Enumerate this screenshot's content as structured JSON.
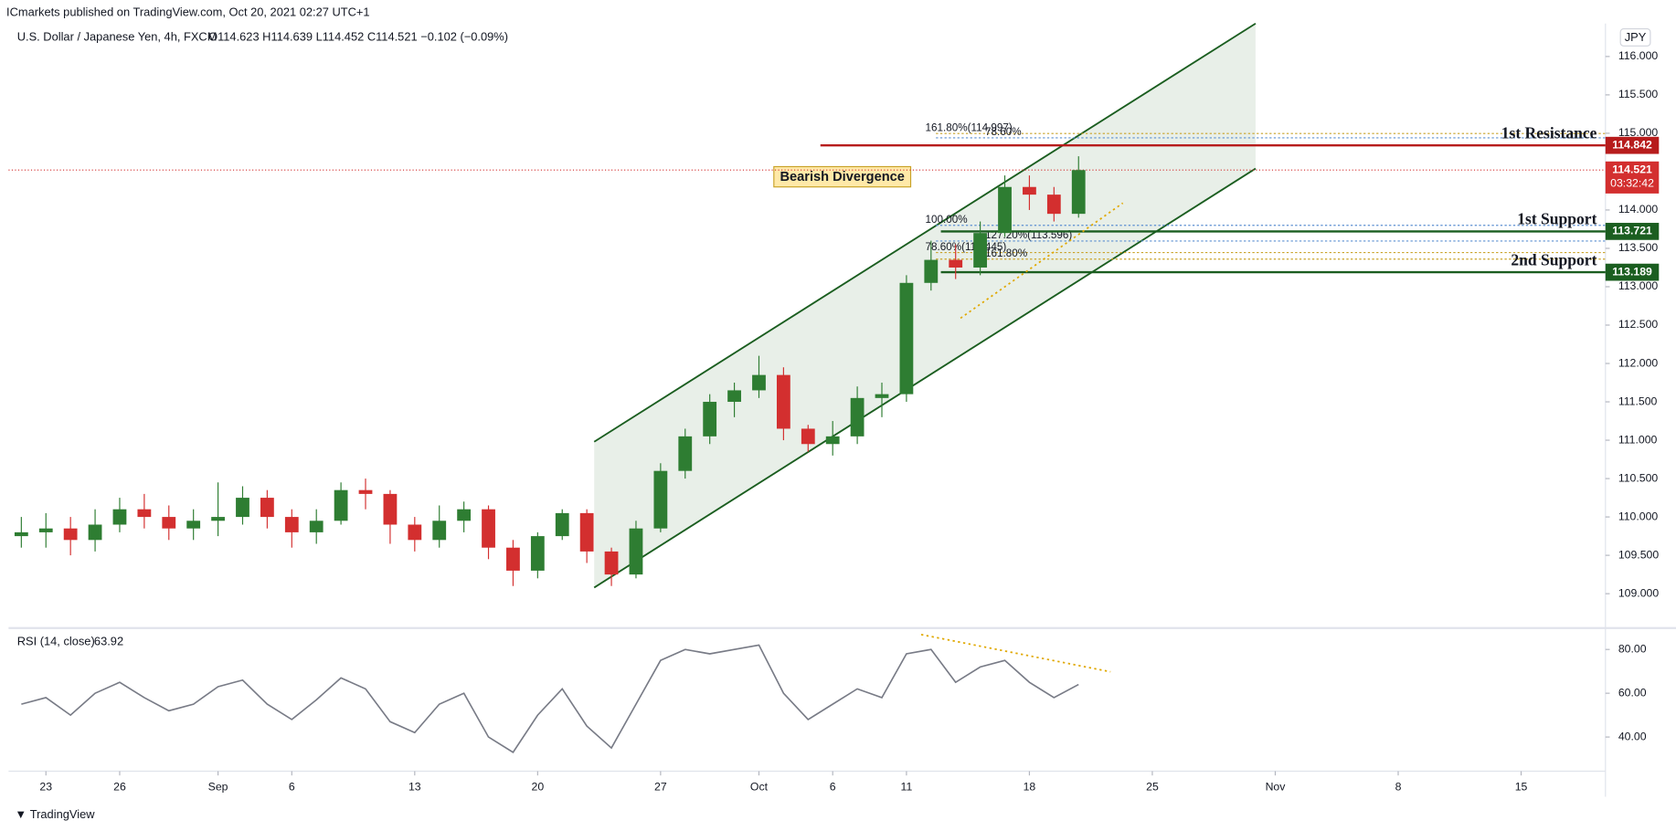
{
  "header": "ICmarkets published on TradingView.com, Oct 20, 2021 02:27 UTC+1",
  "footer": "TradingView",
  "chart_data": {
    "type": "candlestick",
    "symbol": "U.S. Dollar / Japanese Yen, 4h, FXCM",
    "ohlc_text": "O114.623 H114.639 L114.452 C114.521 −0.102 (−0.09%)",
    "currency": "JPY",
    "annotation": "Bearish Divergence",
    "up_color": "#2e7d32",
    "down_color": "#d32f2f",
    "xlim": [
      -1.52,
      63.43
    ],
    "xticks": [
      {
        "value": 0,
        "label": "23"
      },
      {
        "value": 3,
        "label": "26"
      },
      {
        "value": 7,
        "label": "Sep"
      },
      {
        "value": 10,
        "label": "6"
      },
      {
        "value": 15,
        "label": "13"
      },
      {
        "value": 20,
        "label": "20"
      },
      {
        "value": 25,
        "label": "27"
      },
      {
        "value": 29,
        "label": "Oct"
      },
      {
        "value": 32,
        "label": "6"
      },
      {
        "value": 35,
        "label": "11"
      },
      {
        "value": 40,
        "label": "18"
      },
      {
        "value": 45,
        "label": "25"
      },
      {
        "value": 50,
        "label": "Nov"
      },
      {
        "value": 55,
        "label": "8"
      },
      {
        "value": 60,
        "label": "15"
      }
    ],
    "ylim": [
      108.58,
      116.43
    ],
    "yticks": [
      {
        "value": 109,
        "label": "109.000"
      },
      {
        "value": 109.5,
        "label": "109.500"
      },
      {
        "value": 110,
        "label": "110.000"
      },
      {
        "value": 110.5,
        "label": "110.500"
      },
      {
        "value": 111,
        "label": "111.000"
      },
      {
        "value": 111.5,
        "label": "111.500"
      },
      {
        "value": 112,
        "label": "112.000"
      },
      {
        "value": 112.5,
        "label": "112.500"
      },
      {
        "value": 113,
        "label": "113.000"
      },
      {
        "value": 113.5,
        "label": "113.500"
      },
      {
        "value": 114,
        "label": "114.000"
      },
      {
        "value": 114.5,
        "label": "114.500"
      },
      {
        "value": 115,
        "label": "115.000"
      },
      {
        "value": 115.5,
        "label": "115.500"
      },
      {
        "value": 116,
        "label": "116.000"
      }
    ],
    "x": [
      -1,
      0,
      1,
      2,
      3,
      4,
      5,
      6,
      7,
      8,
      9,
      10,
      11,
      12,
      13,
      14,
      15,
      16,
      17,
      18,
      19,
      20,
      21,
      22,
      23,
      24,
      25,
      26,
      27,
      28,
      29,
      30,
      31,
      32,
      33,
      34,
      35,
      36,
      37,
      38,
      39,
      40,
      41,
      42
    ],
    "open": [
      109.75,
      109.8,
      109.85,
      109.7,
      109.9,
      110.1,
      110.0,
      109.85,
      109.95,
      110.0,
      110.25,
      110.0,
      109.8,
      109.95,
      110.35,
      110.3,
      109.9,
      109.7,
      109.95,
      110.1,
      109.6,
      109.3,
      109.75,
      110.05,
      109.55,
      109.25,
      109.85,
      110.6,
      111.05,
      111.5,
      111.65,
      111.85,
      111.15,
      110.95,
      111.05,
      111.55,
      111.6,
      113.05,
      113.35,
      113.25,
      113.7,
      114.3,
      114.2,
      113.95
    ],
    "high": [
      110.0,
      110.05,
      110.0,
      110.1,
      110.25,
      110.3,
      110.15,
      110.1,
      110.45,
      110.4,
      110.35,
      110.1,
      110.1,
      110.45,
      110.5,
      110.35,
      110.0,
      110.15,
      110.2,
      110.15,
      109.7,
      109.8,
      110.1,
      110.1,
      109.6,
      109.95,
      110.7,
      111.15,
      111.6,
      111.75,
      112.1,
      111.95,
      111.2,
      111.25,
      111.7,
      111.75,
      113.15,
      113.6,
      113.55,
      113.85,
      114.45,
      114.45,
      114.3,
      114.7
    ],
    "low": [
      109.6,
      109.6,
      109.5,
      109.55,
      109.8,
      109.85,
      109.7,
      109.7,
      109.75,
      109.9,
      109.85,
      109.6,
      109.65,
      109.9,
      110.1,
      109.65,
      109.55,
      109.6,
      109.8,
      109.45,
      109.1,
      109.2,
      109.7,
      109.4,
      109.1,
      109.2,
      109.8,
      110.5,
      110.95,
      111.3,
      111.55,
      111.0,
      110.85,
      110.8,
      110.95,
      111.3,
      111.5,
      112.95,
      113.1,
      113.15,
      113.65,
      114.0,
      113.85,
      113.9
    ],
    "close": [
      109.8,
      109.85,
      109.7,
      109.9,
      110.1,
      110.0,
      109.85,
      109.95,
      110.0,
      110.25,
      110.0,
      109.8,
      109.95,
      110.35,
      110.3,
      109.9,
      109.7,
      109.95,
      110.1,
      109.6,
      109.3,
      109.75,
      110.05,
      109.55,
      109.25,
      109.85,
      110.6,
      111.05,
      111.5,
      111.65,
      111.85,
      111.15,
      110.95,
      111.05,
      111.55,
      111.6,
      113.05,
      113.35,
      113.25,
      113.7,
      114.3,
      114.2,
      113.95,
      114.52
    ],
    "channel": {
      "x": [
        22.3,
        49.2
      ],
      "upper": [
        110.98,
        116.43
      ],
      "lower": [
        109.08,
        114.54
      ],
      "color": "#1b5e20"
    },
    "trendline": {
      "x": [
        37.2,
        43.8
      ],
      "values": [
        112.59,
        114.09
      ],
      "color": "#e0a800"
    },
    "current": {
      "value": 114.521,
      "countdown": "03:32:42",
      "color": "#d32f2f"
    },
    "levels": [
      {
        "name": "1st Resistance",
        "value": 114.842,
        "start": 31.5,
        "color": "#b71c1c"
      },
      {
        "name": "1st Support",
        "value": 113.721,
        "start": 36.4,
        "color": "#1b5e20"
      },
      {
        "name": "2nd Support",
        "value": 113.189,
        "start": 36.4,
        "color": "#1b5e20"
      }
    ],
    "fibs": [
      {
        "label": "161.80%(114.997)",
        "value": 114.997,
        "color": "#c9a227"
      },
      {
        "label": "78.60%",
        "value": 114.94,
        "color": "#5b8fd1"
      },
      {
        "label": "100.00%",
        "value": 113.8,
        "color": "#5b8fd1"
      },
      {
        "label": "127.20%(113.596)",
        "value": 113.596,
        "color": "#5b8fd1"
      },
      {
        "label": "78.60%(113.445)",
        "value": 113.445,
        "color": "#c9a227"
      },
      {
        "label": "161.80%",
        "value": 113.36,
        "color": "#c9a227"
      }
    ],
    "fib_start": 36.2,
    "rsi": {
      "name": "RSI (14, close)",
      "last": 63.92,
      "color": "#787b86",
      "ylim": [
        24.4,
        88.8
      ],
      "yticks": [
        {
          "value": 80,
          "label": "80.00"
        },
        {
          "value": 60,
          "label": "60.00"
        },
        {
          "value": 40,
          "label": "40.00"
        }
      ],
      "values": [
        55,
        58,
        50,
        60,
        65,
        58,
        52,
        55,
        63,
        66,
        55,
        48,
        57,
        67,
        62,
        47,
        42,
        55,
        60,
        40,
        33,
        50,
        62,
        45,
        35,
        55,
        75,
        80,
        78,
        80,
        82,
        60,
        48,
        55,
        62,
        58,
        78,
        80,
        65,
        72,
        75,
        65,
        58,
        64
      ],
      "trendline": {
        "x": [
          35.6,
          43.3
        ],
        "values": [
          86.8,
          69.8
        ],
        "color": "#e0a800"
      }
    }
  }
}
